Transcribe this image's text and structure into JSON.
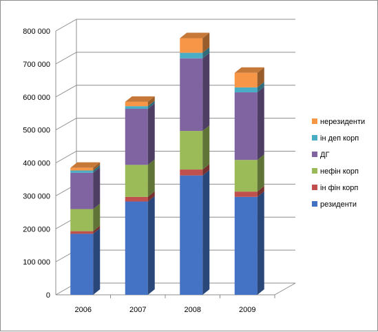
{
  "chart_data": {
    "type": "bar",
    "stacked": true,
    "three_d": true,
    "categories": [
      "2006",
      "2007",
      "2008",
      "2009"
    ],
    "series": [
      {
        "name": "резиденти",
        "color": "#4472C4",
        "values": [
          185000,
          283000,
          362000,
          297000
        ]
      },
      {
        "name": "ін фін корп",
        "color": "#C0504D",
        "values": [
          8000,
          14000,
          18000,
          16000
        ]
      },
      {
        "name": "нефін корп",
        "color": "#9BBB59",
        "values": [
          67000,
          97000,
          117000,
          96000
        ]
      },
      {
        "name": "ДГ",
        "color": "#8064A2",
        "values": [
          110000,
          170000,
          220000,
          205000
        ]
      },
      {
        "name": "ін деп корп",
        "color": "#4BACC6",
        "values": [
          7000,
          8000,
          17000,
          15000
        ]
      },
      {
        "name": "нерезиденти",
        "color": "#F79646",
        "values": [
          8000,
          13000,
          44000,
          44000
        ]
      }
    ],
    "y_ticks": [
      "0",
      "100 000",
      "200 000",
      "300 000",
      "400 000",
      "500 000",
      "600 000",
      "700 000",
      "800 000"
    ],
    "ylim": [
      0,
      800000
    ],
    "grid": true,
    "legend_position": "right"
  }
}
